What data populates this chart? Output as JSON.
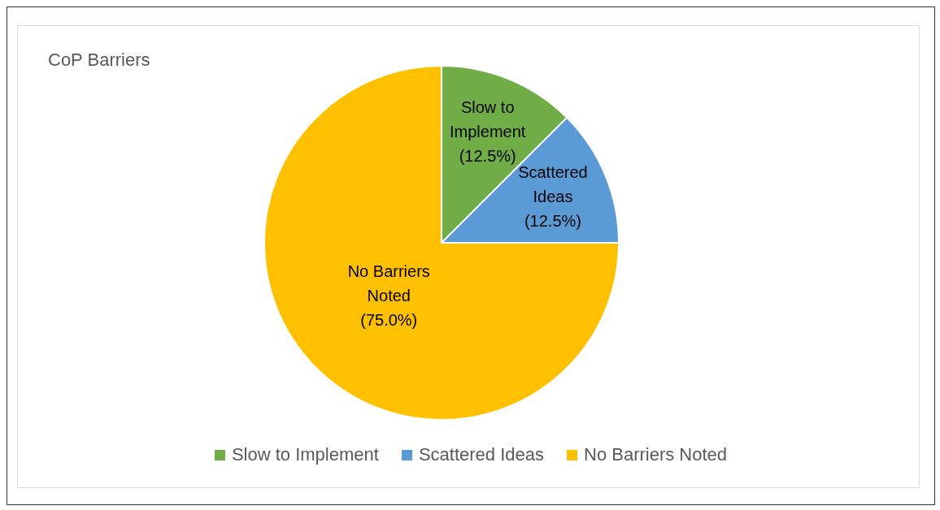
{
  "chart_data": {
    "type": "pie",
    "title": "CoP Barriers",
    "categories": [
      "Slow to Implement",
      "Scattered Ideas",
      "No Barriers Noted"
    ],
    "values": [
      12.5,
      12.5,
      75.0
    ],
    "colors": [
      "#70ad47",
      "#5b9bd5",
      "#ffc000"
    ],
    "value_labels": [
      "(12.5%)",
      "(12.5%)",
      "(75.0%)"
    ],
    "legend": "bottom"
  }
}
